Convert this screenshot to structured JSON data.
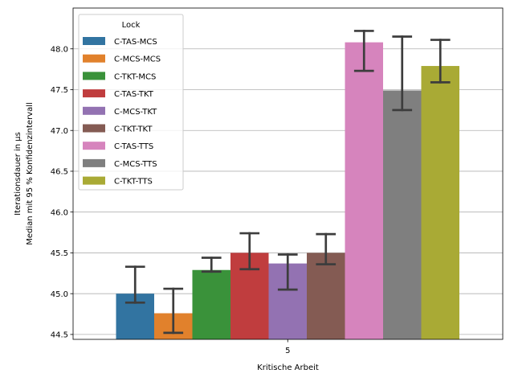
{
  "chart_data": {
    "type": "bar",
    "categories": [
      "5"
    ],
    "xlabel": "Kritische Arbeit",
    "ylabel_lines": [
      "Iterationsdauer in µs",
      "Median mit 95 % Konfidenzintervall"
    ],
    "ylim": [
      44.44,
      48.5
    ],
    "yticks": [
      "44.5",
      "45.0",
      "45.5",
      "46.0",
      "46.5",
      "47.0",
      "47.5",
      "48.0"
    ],
    "grid": true,
    "legend": {
      "title": "Lock",
      "placement": "upper-left"
    },
    "series": [
      {
        "name": "C-TAS-MCS",
        "color": "#3274a1",
        "value": 45.0,
        "ci": [
          44.89,
          45.33
        ]
      },
      {
        "name": "C-MCS-MCS",
        "color": "#e1812c",
        "value": 44.76,
        "ci": [
          44.52,
          45.06
        ]
      },
      {
        "name": "C-TKT-MCS",
        "color": "#3a923a",
        "value": 45.29,
        "ci": [
          45.27,
          45.44
        ]
      },
      {
        "name": "C-TAS-TKT",
        "color": "#c03d3e",
        "value": 45.5,
        "ci": [
          45.3,
          45.74
        ]
      },
      {
        "name": "C-MCS-TKT",
        "color": "#9372b2",
        "value": 45.37,
        "ci": [
          45.05,
          45.48
        ]
      },
      {
        "name": "C-TKT-TKT",
        "color": "#845b53",
        "value": 45.5,
        "ci": [
          45.36,
          45.73
        ]
      },
      {
        "name": "C-TAS-TTS",
        "color": "#d684bd",
        "value": 48.08,
        "ci": [
          47.73,
          48.22
        ]
      },
      {
        "name": "C-MCS-TTS",
        "color": "#7f7f7f",
        "value": 47.49,
        "ci": [
          47.25,
          48.15
        ]
      },
      {
        "name": "C-TKT-TTS",
        "color": "#a9aa35",
        "value": 47.79,
        "ci": [
          47.59,
          48.11
        ]
      }
    ]
  }
}
